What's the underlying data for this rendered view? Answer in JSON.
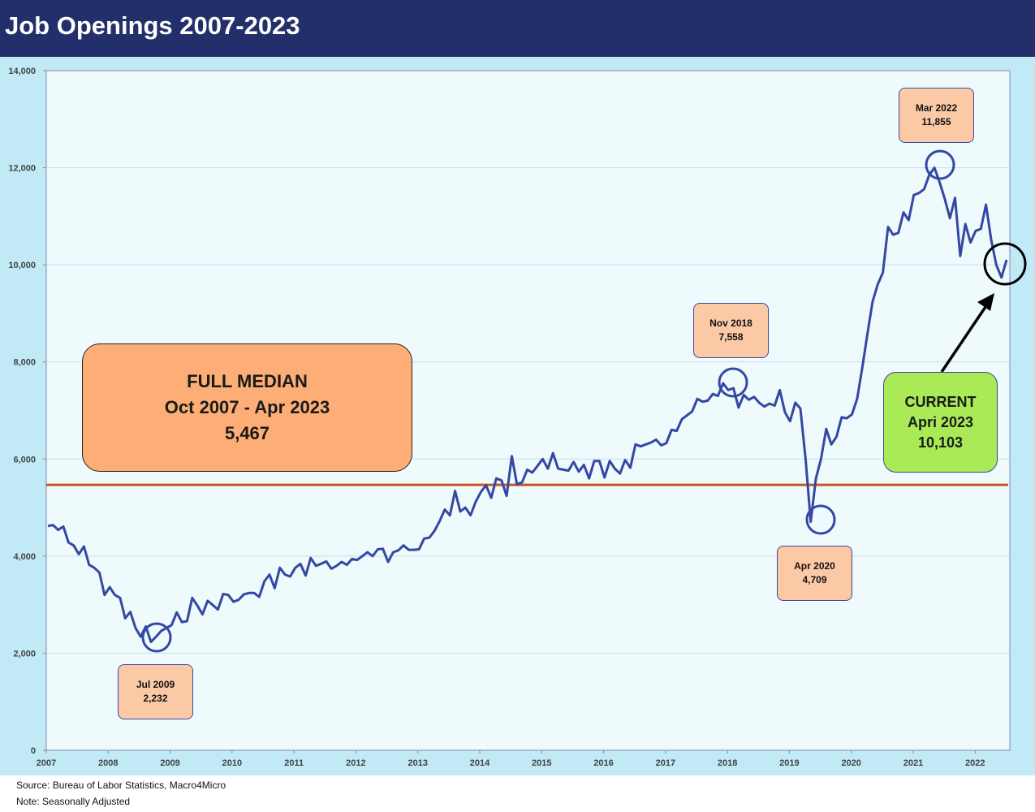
{
  "header": {
    "title": "Job Openings 2007-2023"
  },
  "chart_data": {
    "type": "line",
    "title": "Job Openings 2007-2023",
    "xlabel": "",
    "ylabel": "",
    "ylim": [
      0,
      14000
    ],
    "y_ticks": [
      0,
      2000,
      4000,
      6000,
      8000,
      10000,
      12000,
      14000
    ],
    "y_tick_labels": [
      "0",
      "2,000",
      "4,000",
      "6,000",
      "8,000",
      "10,000",
      "12,000",
      "14,000"
    ],
    "x_tick_labels": [
      "2007",
      "2008",
      "2009",
      "2010",
      "2011",
      "2012",
      "2013",
      "2014",
      "2015",
      "2016",
      "2017",
      "2018",
      "2019",
      "2020",
      "2021",
      "2022"
    ],
    "grid": true,
    "legend": "none",
    "median_value": 5467,
    "colors": {
      "series": "#3448a3",
      "median_line": "#c8561f"
    },
    "series": [
      {
        "name": "",
        "values": [
          4620,
          4640,
          4540,
          4610,
          4280,
          4220,
          4040,
          4200,
          3820,
          3760,
          3660,
          3200,
          3360,
          3200,
          3140,
          2720,
          2850,
          2520,
          2340,
          2550,
          2232,
          2340,
          2460,
          2520,
          2580,
          2840,
          2640,
          2660,
          3140,
          2980,
          2800,
          3080,
          2990,
          2900,
          3220,
          3200,
          3060,
          3100,
          3210,
          3240,
          3240,
          3160,
          3480,
          3620,
          3340,
          3760,
          3620,
          3580,
          3760,
          3840,
          3600,
          3960,
          3800,
          3840,
          3890,
          3740,
          3800,
          3880,
          3820,
          3940,
          3920,
          4000,
          4080,
          4000,
          4140,
          4150,
          3880,
          4080,
          4120,
          4220,
          4130,
          4130,
          4140,
          4360,
          4380,
          4520,
          4720,
          4960,
          4840,
          5340,
          4920,
          5000,
          4840,
          5120,
          5320,
          5460,
          5200,
          5600,
          5560,
          5240,
          6060,
          5480,
          5520,
          5780,
          5720,
          5860,
          6000,
          5800,
          6120,
          5800,
          5780,
          5760,
          5940,
          5740,
          5880,
          5600,
          5960,
          5960,
          5620,
          5960,
          5800,
          5700,
          5980,
          5820,
          6300,
          6260,
          6300,
          6340,
          6400,
          6280,
          6330,
          6600,
          6580,
          6820,
          6900,
          6980,
          7240,
          7180,
          7200,
          7340,
          7300,
          7558,
          7420,
          7460,
          7060,
          7320,
          7220,
          7280,
          7160,
          7080,
          7140,
          7100,
          7420,
          6960,
          6780,
          7160,
          7040,
          6000,
          4709,
          5600,
          6000,
          6620,
          6300,
          6460,
          6860,
          6840,
          6920,
          7240,
          7880,
          8580,
          9240,
          9600,
          9840,
          10780,
          10620,
          10660,
          11080,
          10920,
          11440,
          11480,
          11560,
          11855,
          12000,
          11700,
          11360,
          10960,
          11380,
          10180,
          10840,
          10460,
          10700,
          10740,
          11240,
          10520,
          10000,
          9740,
          10103
        ]
      }
    ],
    "annotations": [
      {
        "label": "Jul 2009",
        "value": "2,232"
      },
      {
        "label": "Nov 2018",
        "value": "7,558"
      },
      {
        "label": "Apr 2020",
        "value": "4,709"
      },
      {
        "label": "Mar 2022",
        "value": "11,855"
      }
    ],
    "median_box": {
      "line1": "FULL MEDIAN",
      "line2": "Oct 2007 - Apr 2023",
      "line3": "5,467"
    },
    "current_box": {
      "line1": "CURRENT",
      "line2": "Apri 2023",
      "line3": "10,103"
    }
  },
  "footer": {
    "source": "Source: Bureau of Labor Statistics, Macro4Micro",
    "note": "Note: Seasonally Adjusted"
  }
}
